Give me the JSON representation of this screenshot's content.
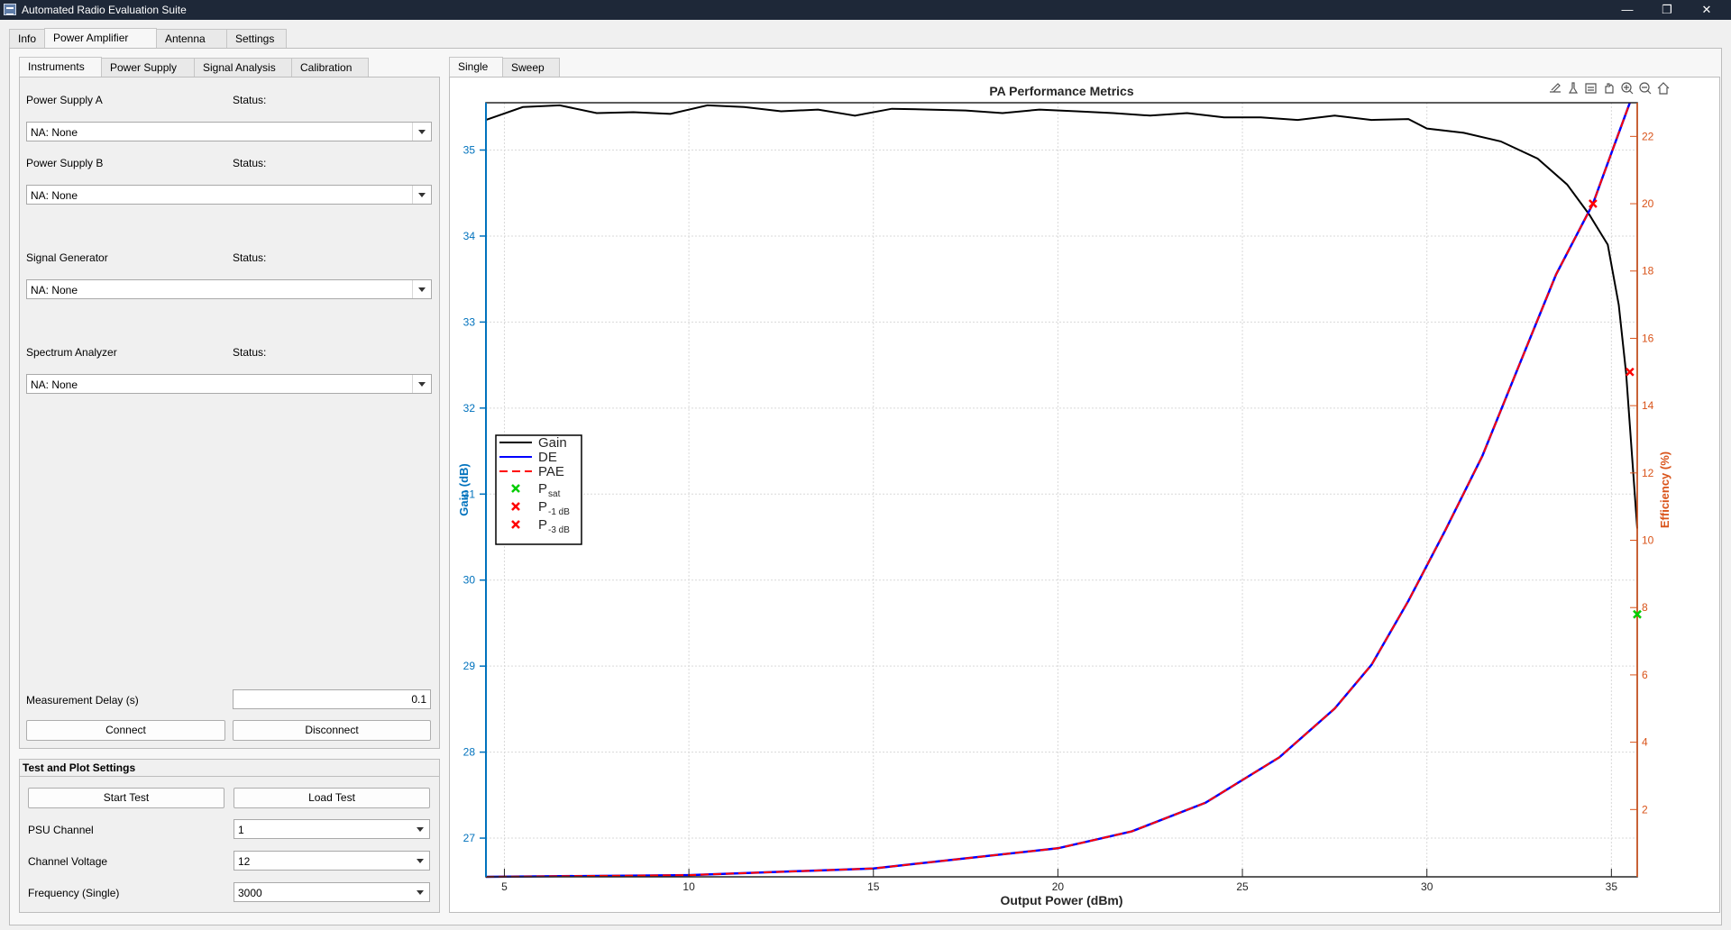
{
  "window": {
    "title": "Automated Radio Evaluation Suite",
    "controls": [
      "—",
      "❐",
      "✕"
    ]
  },
  "main_tabs": [
    "Info",
    "Power Amplifier",
    "Antenna",
    "Settings"
  ],
  "sub_tabs": [
    "Instruments",
    "Power Supply",
    "Signal Analysis",
    "Calibration"
  ],
  "instruments": [
    {
      "label": "Power Supply A",
      "status_label": "Status:",
      "value": "NA: None"
    },
    {
      "label": "Power Supply B",
      "status_label": "Status:",
      "value": "NA: None"
    },
    {
      "label": "Signal Generator",
      "status_label": "Status:",
      "value": "NA: None"
    },
    {
      "label": "Spectrum Analyzer",
      "status_label": "Status:",
      "value": "NA: None"
    }
  ],
  "measurement_delay": {
    "label": "Measurement Delay (s)",
    "value": "0.1"
  },
  "buttons": {
    "connect": "Connect",
    "disconnect": "Disconnect",
    "start_test": "Start Test",
    "load_test": "Load Test"
  },
  "test_settings": {
    "title": "Test and Plot Settings",
    "psu_channel": {
      "label": "PSU Channel",
      "value": "1"
    },
    "channel_voltage": {
      "label": "Channel Voltage",
      "value": "12"
    },
    "frequency": {
      "label": "Frequency (Single)",
      "value": "3000"
    }
  },
  "plot_tabs": [
    "Single",
    "Sweep"
  ],
  "toolbar_icons": [
    "export-icon",
    "brush-icon",
    "datatip-icon",
    "pan-icon",
    "zoom-in-icon",
    "zoom-out-icon",
    "home-icon"
  ],
  "chart_data": {
    "type": "line",
    "title": "PA Performance Metrics",
    "xlabel": "Output Power (dBm)",
    "ylabel_left": "Gain (dB)",
    "ylabel_right": "Efficiency (%)",
    "xlim": [
      4.5,
      35.7
    ],
    "ylim_left": [
      26.55,
      35.55
    ],
    "ylim_right": [
      0,
      23
    ],
    "xticks": [
      5,
      10,
      15,
      20,
      25,
      30,
      35
    ],
    "yticks_left": [
      27,
      28,
      29,
      30,
      31,
      32,
      33,
      34,
      35
    ],
    "yticks_right": [
      2,
      4,
      6,
      8,
      10,
      12,
      14,
      16,
      18,
      20,
      22
    ],
    "grid": true,
    "legend_position": "left-middle",
    "colors": {
      "gain": "#000000",
      "de": "#0000ff",
      "pae": "#ff0000",
      "psat": "#00cc00",
      "p1db": "#ff0000",
      "p3db": "#ff0000",
      "left_axis": "#0072bd",
      "right_axis": "#d95319"
    },
    "series": [
      {
        "name": "Gain",
        "axis": "left",
        "x": [
          4.5,
          5.5,
          6.5,
          7.5,
          8.5,
          9.5,
          10.5,
          11.5,
          12.5,
          13.5,
          14.5,
          15.5,
          16.5,
          17.5,
          18.5,
          19.5,
          20.5,
          21.5,
          22.5,
          23.5,
          24.5,
          25.5,
          26.5,
          27.5,
          28.5,
          29.5,
          30.0,
          31.0,
          32.0,
          33.0,
          33.8,
          34.4,
          34.9,
          35.2,
          35.4,
          35.5,
          35.6,
          35.7
        ],
        "y": [
          35.35,
          35.5,
          35.52,
          35.43,
          35.44,
          35.42,
          35.52,
          35.5,
          35.45,
          35.47,
          35.4,
          35.48,
          35.47,
          35.46,
          35.43,
          35.47,
          35.45,
          35.43,
          35.4,
          35.43,
          35.38,
          35.38,
          35.35,
          35.4,
          35.35,
          35.36,
          35.25,
          35.2,
          35.1,
          34.9,
          34.6,
          34.25,
          33.9,
          33.2,
          32.4,
          31.8,
          31.2,
          30.6
        ]
      },
      {
        "name": "DE",
        "axis": "right",
        "x": [
          4.5,
          10,
          15,
          20,
          22,
          24,
          26,
          27.5,
          28.5,
          29.5,
          30.5,
          31.5,
          32.5,
          33.5,
          34.5,
          35.0,
          35.5
        ],
        "y": [
          0,
          0.05,
          0.25,
          0.85,
          1.35,
          2.2,
          3.55,
          5.0,
          6.3,
          8.2,
          10.3,
          12.5,
          15.2,
          17.9,
          20.0,
          21.5,
          23.0
        ]
      },
      {
        "name": "PAE",
        "axis": "right",
        "x": [
          4.5,
          10,
          15,
          20,
          22,
          24,
          26,
          27.5,
          28.5,
          29.5,
          30.5,
          31.5,
          32.5,
          33.5,
          34.5,
          35.0,
          35.5
        ],
        "y": [
          0,
          0.05,
          0.25,
          0.85,
          1.35,
          2.2,
          3.55,
          5.0,
          6.3,
          8.2,
          10.3,
          12.5,
          15.2,
          17.9,
          20.0,
          21.5,
          23.0
        ]
      }
    ],
    "markers": [
      {
        "name": "Psat",
        "x": 35.7,
        "y": 7.8,
        "axis": "right"
      },
      {
        "name": "P-1 dB",
        "x": 35.5,
        "y": 15.0,
        "axis": "right"
      },
      {
        "name": "P-3 dB",
        "x": 34.5,
        "y": 20.0,
        "axis": "right"
      }
    ],
    "legend": [
      {
        "label": "Gain",
        "sub": ""
      },
      {
        "label": "DE",
        "sub": ""
      },
      {
        "label": "PAE",
        "sub": ""
      },
      {
        "label": "P",
        "sub": "sat"
      },
      {
        "label": "P",
        "sub": "-1 dB"
      },
      {
        "label": "P",
        "sub": "-3 dB"
      }
    ]
  }
}
